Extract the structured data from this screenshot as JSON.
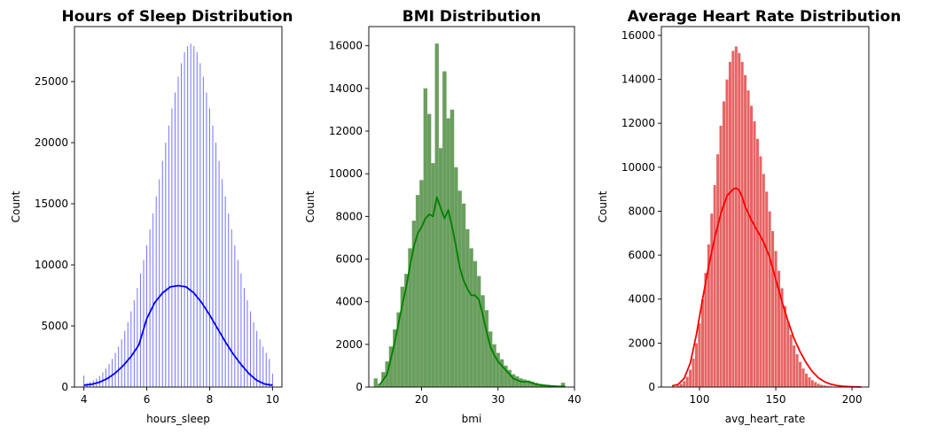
{
  "chart_data": [
    {
      "type": "bar",
      "title": "Hours of Sleep Distribution",
      "xlabel": "hours_sleep",
      "ylabel": "Count",
      "xlim": [
        3.7,
        10.3
      ],
      "ylim": [
        0,
        29500
      ],
      "xticks": [
        4,
        6,
        8,
        10
      ],
      "yticks": [
        0,
        5000,
        10000,
        15000,
        20000,
        25000
      ],
      "ytick_labels": [
        "0",
        "5000",
        "10000",
        "15000",
        "20000",
        "25000"
      ],
      "xtick_labels": [
        "4",
        "6",
        "8",
        "10"
      ],
      "color": "#0000ff",
      "bar_style": "spikes",
      "x": [
        4.0,
        4.1,
        4.2,
        4.3,
        4.4,
        4.5,
        4.6,
        4.7,
        4.8,
        4.9,
        5.0,
        5.1,
        5.2,
        5.3,
        5.4,
        5.5,
        5.6,
        5.7,
        5.8,
        5.9,
        6.0,
        6.1,
        6.2,
        6.3,
        6.4,
        6.5,
        6.6,
        6.7,
        6.8,
        6.9,
        7.0,
        7.1,
        7.2,
        7.3,
        7.4,
        7.5,
        7.6,
        7.7,
        7.8,
        7.9,
        8.0,
        8.1,
        8.2,
        8.3,
        8.4,
        8.5,
        8.6,
        8.7,
        8.8,
        8.9,
        9.0,
        9.1,
        9.2,
        9.3,
        9.4,
        9.5,
        9.6,
        9.7,
        9.8,
        9.9,
        10.0
      ],
      "values": [
        950,
        300,
        450,
        550,
        700,
        900,
        1200,
        1500,
        1900,
        2300,
        2800,
        3300,
        3900,
        4600,
        5300,
        6200,
        7100,
        8100,
        9300,
        10400,
        11600,
        12900,
        14200,
        15600,
        17000,
        18500,
        20000,
        21400,
        22800,
        24100,
        25400,
        26500,
        27400,
        27900,
        28100,
        27900,
        27400,
        26500,
        25400,
        24100,
        22800,
        21400,
        20000,
        18500,
        17000,
        15600,
        14200,
        12900,
        11600,
        10400,
        9300,
        8100,
        7100,
        6200,
        5300,
        4600,
        3900,
        3300,
        2800,
        2300,
        1100
      ],
      "kde": {
        "x": [
          4.0,
          4.25,
          4.5,
          4.75,
          5.0,
          5.25,
          5.5,
          5.75,
          6.0,
          6.25,
          6.5,
          6.75,
          7.0,
          7.25,
          7.5,
          7.75,
          8.0,
          8.25,
          8.5,
          8.75,
          9.0,
          9.25,
          9.5,
          9.75,
          10.0
        ],
        "y": [
          150,
          230,
          400,
          700,
          1150,
          1750,
          2500,
          3450,
          5600,
          6900,
          7700,
          8200,
          8300,
          8200,
          7700,
          6900,
          5900,
          4800,
          3700,
          2700,
          1850,
          1100,
          550,
          250,
          150
        ]
      }
    },
    {
      "type": "bar",
      "title": "BMI Distribution",
      "xlabel": "bmi",
      "ylabel": "Count",
      "xlim": [
        13.1,
        40.0
      ],
      "ylim": [
        0,
        16900
      ],
      "xticks": [
        20,
        30,
        40
      ],
      "xtick_labels": [
        "20",
        "30",
        "40"
      ],
      "yticks": [
        0,
        2000,
        4000,
        6000,
        8000,
        10000,
        12000,
        14000,
        16000
      ],
      "ytick_labels": [
        "0",
        "2000",
        "4000",
        "6000",
        "8000",
        "10000",
        "12000",
        "14000",
        "16000"
      ],
      "color": "#6a9e5e",
      "line_color": "#008000",
      "bar_style": "filled",
      "x": [
        14.0,
        14.5,
        15.0,
        15.5,
        16.0,
        16.5,
        17.0,
        17.5,
        18.0,
        18.5,
        19.0,
        19.5,
        20.0,
        20.5,
        21.0,
        21.5,
        22.0,
        22.5,
        23.0,
        23.5,
        24.0,
        24.5,
        25.0,
        25.5,
        26.0,
        26.5,
        27.0,
        27.5,
        28.0,
        28.5,
        29.0,
        29.5,
        30.0,
        30.5,
        31.0,
        31.5,
        32.0,
        32.5,
        33.0,
        33.5,
        34.0,
        34.5,
        35.0,
        35.5,
        36.0,
        36.5,
        37.0,
        37.5,
        38.0,
        38.5
      ],
      "values": [
        400,
        150,
        700,
        1200,
        1900,
        2700,
        3500,
        4700,
        5300,
        6500,
        7800,
        9000,
        9700,
        14000,
        12800,
        10500,
        16100,
        11200,
        14800,
        12600,
        13000,
        10300,
        9200,
        8600,
        7400,
        6500,
        5900,
        5200,
        4300,
        3600,
        2600,
        2000,
        1600,
        1300,
        1000,
        800,
        600,
        500,
        400,
        350,
        300,
        250,
        200,
        150,
        120,
        100,
        80,
        60,
        50,
        200
      ],
      "kde": {
        "x": [
          14.5,
          15.5,
          16.5,
          17.0,
          17.5,
          18.0,
          18.5,
          19.0,
          19.5,
          20.0,
          20.5,
          21.0,
          21.5,
          22.0,
          22.5,
          23.0,
          23.5,
          24.0,
          24.5,
          25.0,
          25.5,
          26.0,
          26.5,
          27.0,
          27.5,
          28.0,
          28.5,
          29.0,
          29.5,
          30.0,
          30.5,
          31.0,
          32.0,
          33.0,
          34.0,
          35.0,
          36.0,
          37.0,
          38.0,
          38.8
        ],
        "y": [
          100,
          600,
          2100,
          3000,
          3900,
          4700,
          5700,
          6600,
          7200,
          7500,
          7900,
          8100,
          8000,
          8900,
          8400,
          7900,
          8300,
          7500,
          6600,
          5600,
          5000,
          4600,
          4300,
          4300,
          4100,
          3400,
          2600,
          1900,
          1500,
          1200,
          1000,
          800,
          400,
          250,
          250,
          120,
          80,
          50,
          30,
          20
        ]
      }
    },
    {
      "type": "bar",
      "title": "Average Heart Rate Distribution",
      "xlabel": "avg_heart_rate",
      "ylabel": "Count",
      "xlim": [
        75,
        211
      ],
      "ylim": [
        0,
        16400
      ],
      "xticks": [
        100,
        150,
        200
      ],
      "xtick_labels": [
        "100",
        "150",
        "200"
      ],
      "yticks": [
        0,
        2000,
        4000,
        6000,
        8000,
        10000,
        12000,
        14000,
        16000
      ],
      "ytick_labels": [
        "0",
        "2000",
        "4000",
        "6000",
        "8000",
        "10000",
        "12000",
        "14000",
        "16000"
      ],
      "color": "#e03030",
      "line_color": "#ff0000",
      "bar_style": "dense",
      "x": [
        84,
        86,
        88,
        90,
        92,
        94,
        96,
        98,
        100,
        102,
        104,
        106,
        108,
        110,
        112,
        114,
        116,
        118,
        120,
        122,
        124,
        126,
        128,
        130,
        132,
        134,
        136,
        138,
        140,
        142,
        144,
        146,
        148,
        150,
        152,
        154,
        156,
        158,
        160,
        162,
        164,
        166,
        168,
        170,
        172,
        174,
        176,
        178,
        180,
        182,
        184,
        186,
        188,
        190,
        192,
        194,
        196,
        198,
        200,
        202,
        204
      ],
      "values": [
        30,
        80,
        150,
        280,
        480,
        800,
        1300,
        2000,
        2900,
        4000,
        5200,
        6500,
        7900,
        9200,
        10600,
        11900,
        13000,
        14000,
        14800,
        15300,
        15500,
        15200,
        14800,
        14200,
        13500,
        12800,
        12100,
        11300,
        10500,
        9700,
        8900,
        8000,
        7100,
        6200,
        5300,
        4500,
        3700,
        3000,
        2400,
        1900,
        1500,
        1150,
        850,
        620,
        450,
        320,
        230,
        160,
        110,
        80,
        60,
        40,
        30,
        20,
        15,
        10,
        8,
        6,
        4,
        3,
        2
      ],
      "kde": {
        "x": [
          82,
          86,
          90,
          94,
          98,
          102,
          106,
          110,
          114,
          118,
          122,
          124,
          126,
          128,
          130,
          134,
          138,
          142,
          146,
          150,
          154,
          158,
          162,
          166,
          170,
          174,
          178,
          182,
          186,
          190,
          194,
          198,
          202,
          206
        ],
        "y": [
          50,
          120,
          400,
          1100,
          2400,
          4000,
          5500,
          6800,
          7900,
          8700,
          9000,
          9050,
          8950,
          8650,
          8200,
          7600,
          7100,
          6600,
          5900,
          4900,
          3900,
          3000,
          2200,
          1600,
          1100,
          700,
          420,
          240,
          130,
          70,
          35,
          20,
          10,
          5
        ]
      }
    }
  ]
}
